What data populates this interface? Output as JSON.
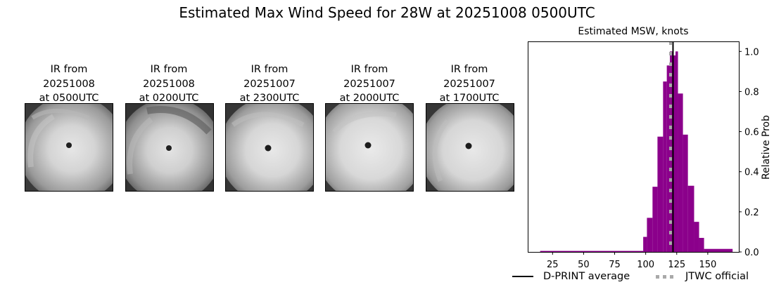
{
  "figure": {
    "title": "Estimated Max Wind Speed for 28W at 20251008 0500UTC"
  },
  "thumbnails": [
    {
      "line1": "IR from",
      "line2": "20251008",
      "line3": "at 0500UTC"
    },
    {
      "line1": "IR from",
      "line2": "20251008",
      "line3": "at 0200UTC"
    },
    {
      "line1": "IR from",
      "line2": "20251007",
      "line3": "at 2300UTC"
    },
    {
      "line1": "IR from",
      "line2": "20251007",
      "line3": "at 2000UTC"
    },
    {
      "line1": "IR from",
      "line2": "20251007",
      "line3": "at 1700UTC"
    }
  ],
  "legend": {
    "dprint": "D-PRINT average",
    "jtwc": "JTWC official"
  },
  "colors": {
    "bar": "#8b008b",
    "dprint_line": "#000000",
    "jtwc_line": "#a9a9a9"
  },
  "chart_data": {
    "type": "bar",
    "title": "Estimated MSW, knots",
    "xlabel": "",
    "ylabel": "Relative Prob",
    "xlim": [
      5,
      175
    ],
    "ylim": [
      0.0,
      1.05
    ],
    "xticks": [
      25,
      50,
      75,
      100,
      125,
      150
    ],
    "yticks": [
      0.0,
      0.2,
      0.4,
      0.6,
      0.8,
      1.0
    ],
    "ytick_labels": [
      "0.0",
      "0.2",
      "0.4",
      "0.6",
      "0.8",
      "1.0"
    ],
    "y_axis_side": "right",
    "grid": false,
    "bins": [
      {
        "x0": 15,
        "x1": 98,
        "value": 0.005
      },
      {
        "x0": 98,
        "x1": 101,
        "value": 0.075
      },
      {
        "x0": 101,
        "x1": 105.5,
        "value": 0.17
      },
      {
        "x0": 105.5,
        "x1": 109.5,
        "value": 0.325
      },
      {
        "x0": 109.5,
        "x1": 114,
        "value": 0.575
      },
      {
        "x0": 114,
        "x1": 117,
        "value": 0.85
      },
      {
        "x0": 117,
        "x1": 119.5,
        "value": 0.93
      },
      {
        "x0": 119.5,
        "x1": 121.5,
        "value": 1.0
      },
      {
        "x0": 121.5,
        "x1": 124,
        "value": 0.98
      },
      {
        "x0": 124,
        "x1": 126,
        "value": 1.0
      },
      {
        "x0": 126,
        "x1": 130,
        "value": 0.79
      },
      {
        "x0": 130,
        "x1": 134,
        "value": 0.585
      },
      {
        "x0": 134,
        "x1": 139,
        "value": 0.33
      },
      {
        "x0": 139,
        "x1": 143,
        "value": 0.15
      },
      {
        "x0": 143,
        "x1": 147,
        "value": 0.07
      },
      {
        "x0": 147,
        "x1": 170,
        "value": 0.015
      }
    ],
    "vlines": [
      {
        "name": "D-PRINT average",
        "x": 122,
        "style": "solid",
        "color": "#000000"
      },
      {
        "name": "JTWC official",
        "x": 120,
        "style": "dotted",
        "color": "#a9a9a9"
      }
    ],
    "legend_position": "below"
  }
}
